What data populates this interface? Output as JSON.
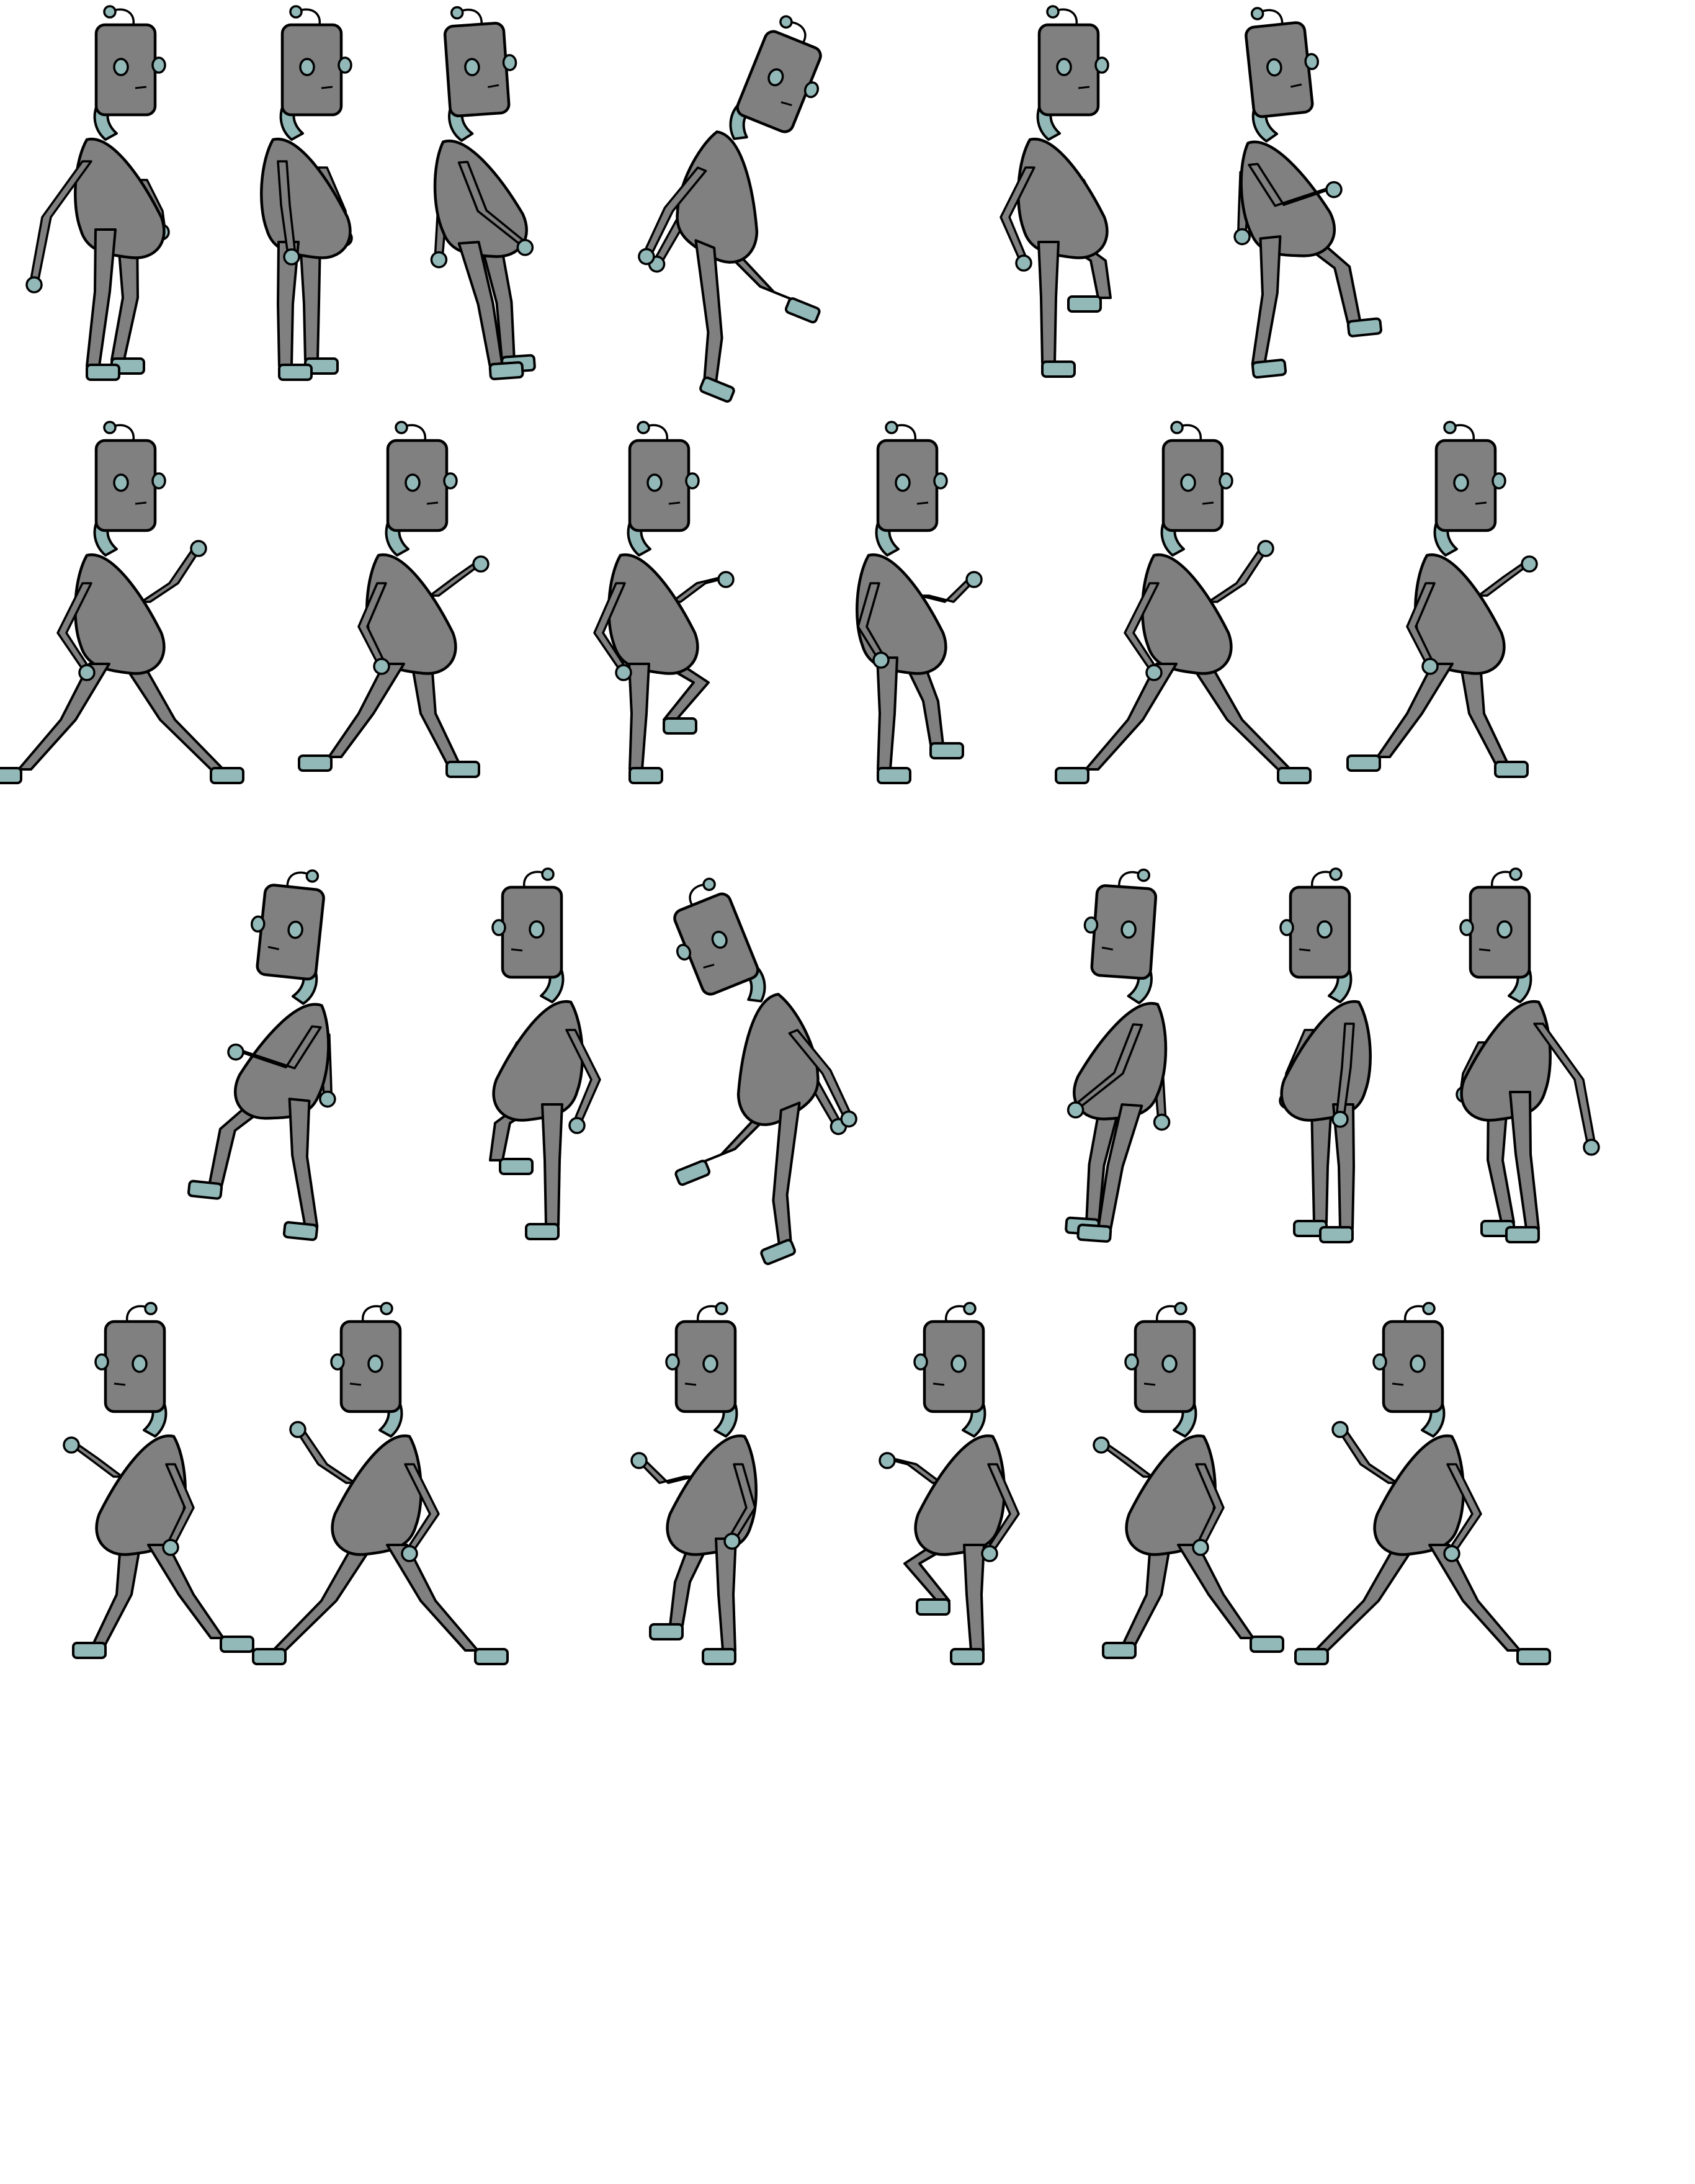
{
  "sheet": {
    "background_color": "#ffffff",
    "colors": {
      "body_fill": "#808080",
      "accent_fill": "#93b8b8",
      "outline": "#000000"
    },
    "rows": [
      {
        "frames": [
          {
            "facing": "right",
            "pose": "stand-lean"
          },
          {
            "facing": "right",
            "pose": "stand-straight"
          },
          {
            "facing": "right",
            "pose": "stand-hunch"
          },
          {
            "facing": "right",
            "pose": "fall-kick"
          },
          {
            "facing": "right",
            "pose": "knee-raise"
          },
          {
            "facing": "right",
            "pose": "twist-step"
          }
        ]
      },
      {
        "frames": [
          {
            "facing": "right",
            "pose": "run-wide"
          },
          {
            "facing": "right",
            "pose": "run-mid"
          },
          {
            "facing": "right",
            "pose": "run-knee-up"
          },
          {
            "facing": "right",
            "pose": "run-step"
          },
          {
            "facing": "right",
            "pose": "run-wide"
          },
          {
            "facing": "right",
            "pose": "run-mid"
          }
        ]
      },
      {
        "frames": [
          {
            "facing": "left",
            "pose": "twist-step"
          },
          {
            "facing": "left",
            "pose": "knee-raise"
          },
          {
            "facing": "left",
            "pose": "fall-kick"
          },
          {
            "facing": "left",
            "pose": "stand-hunch"
          },
          {
            "facing": "left",
            "pose": "stand-straight"
          },
          {
            "facing": "left",
            "pose": "stand-lean"
          }
        ]
      },
      {
        "frames": [
          {
            "facing": "left",
            "pose": "run-mid"
          },
          {
            "facing": "left",
            "pose": "run-wide"
          },
          {
            "facing": "left",
            "pose": "run-step"
          },
          {
            "facing": "left",
            "pose": "run-knee-up"
          },
          {
            "facing": "left",
            "pose": "run-mid"
          },
          {
            "facing": "left",
            "pose": "run-wide"
          }
        ]
      }
    ]
  }
}
